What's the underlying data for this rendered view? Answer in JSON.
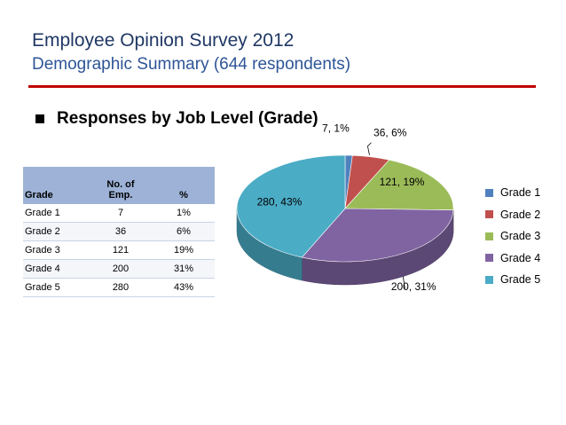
{
  "slide": {
    "title": "Employee Opinion Survey 2012",
    "subtitle": "Demographic Summary (644 respondents)",
    "bullet": "Responses by Job Level (Grade)"
  },
  "table": {
    "headers": {
      "grade": "Grade",
      "no_of": "No. of",
      "emp": "Emp.",
      "pct": "%"
    },
    "rows": [
      {
        "grade": "Grade 1",
        "emp": "7",
        "pct": "1%"
      },
      {
        "grade": "Grade 2",
        "emp": "36",
        "pct": "6%"
      },
      {
        "grade": "Grade 3",
        "emp": "121",
        "pct": "19%"
      },
      {
        "grade": "Grade 4",
        "emp": "200",
        "pct": "31%"
      },
      {
        "grade": "Grade 5",
        "emp": "280",
        "pct": "43%"
      }
    ]
  },
  "colors": {
    "title": "#1f3864",
    "subtitle": "#2e5597",
    "rule": "#c00000",
    "table_header": "#9db2d6"
  },
  "chart_data": {
    "type": "pie",
    "title": "",
    "categories": [
      "Grade 1",
      "Grade 2",
      "Grade 3",
      "Grade 4",
      "Grade 5"
    ],
    "values": [
      7,
      36,
      121,
      200,
      280
    ],
    "percent_labels": [
      "1%",
      "6%",
      "19%",
      "31%",
      "43%"
    ],
    "data_labels": [
      "7, 1%",
      "36, 6%",
      "121, 19%",
      "200, 31%",
      "280, 43%"
    ],
    "colors": [
      "#4f81bd",
      "#c0504d",
      "#9bbb59",
      "#8064a2",
      "#4bacc6"
    ],
    "style": "3d",
    "legend_position": "right"
  }
}
